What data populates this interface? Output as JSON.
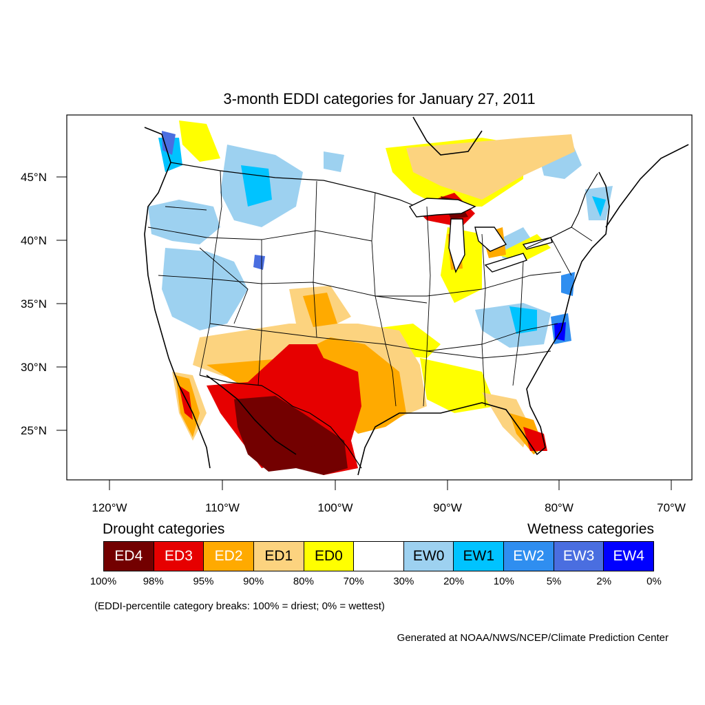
{
  "title": "3-month EDDI categories for January 27, 2011",
  "latitude_labels": [
    "45°N",
    "40°N",
    "35°N",
    "30°N",
    "25°N"
  ],
  "longitude_labels": [
    "120°W",
    "110°W",
    "100°W",
    "90°W",
    "80°W",
    "70°W"
  ],
  "legend": {
    "drought_heading": "Drought categories",
    "wetness_heading": "Wetness categories",
    "categories": [
      {
        "label": "ED4",
        "color": "#730000",
        "text_color": "#ffffff"
      },
      {
        "label": "ED3",
        "color": "#e60000",
        "text_color": "#ffffff"
      },
      {
        "label": "ED2",
        "color": "#ffaa00",
        "text_color": "#ffffff"
      },
      {
        "label": "ED1",
        "color": "#fcd37f",
        "text_color": "#000000"
      },
      {
        "label": "ED0",
        "color": "#ffff00",
        "text_color": "#000000"
      },
      {
        "label": "",
        "color": "#ffffff",
        "text_color": "#000000"
      },
      {
        "label": "EW0",
        "color": "#9dd1f0",
        "text_color": "#000000"
      },
      {
        "label": "EW1",
        "color": "#00c3ff",
        "text_color": "#000000"
      },
      {
        "label": "EW2",
        "color": "#2f8ef0",
        "text_color": "#ffffff"
      },
      {
        "label": "EW3",
        "color": "#4a6ee0",
        "text_color": "#ffffff"
      },
      {
        "label": "EW4",
        "color": "#0000ff",
        "text_color": "#ffffff"
      }
    ],
    "breaks": [
      "100%",
      "98%",
      "95%",
      "90%",
      "80%",
      "70%",
      "30%",
      "20%",
      "10%",
      "5%",
      "2%",
      "0%"
    ]
  },
  "note": "(EDDI-percentile category breaks: 100% = driest; 0% = wettest)",
  "credit": "Generated at NOAA/NWS/NCEP/Climate Prediction Center"
}
